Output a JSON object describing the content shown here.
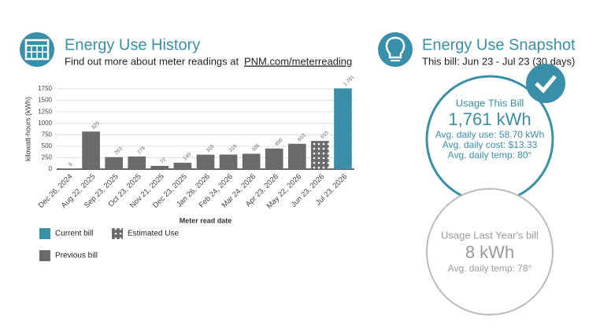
{
  "history": {
    "title": "Energy Use History",
    "subtitle": "Find out more about meter readings at",
    "link": "PNM.com/meterreading"
  },
  "chart_data": {
    "type": "bar",
    "categories": [
      "Dec 26, 2024",
      "Aug 22, 2025",
      "Sep 23, 2025",
      "Oct 23, 2025",
      "Nov 21, 2025",
      "Dec 23, 2025",
      "Jan 26, 2026",
      "Feb 24, 2026",
      "Mar 24, 2026",
      "Apr 23, 2026",
      "May 22, 2026",
      "Jun 23, 2026",
      "Jul 23, 2026"
    ],
    "series": [
      {
        "name": "Current bill",
        "color": "#3a8fa8",
        "values": [
          null,
          null,
          null,
          null,
          null,
          null,
          null,
          null,
          null,
          null,
          null,
          null,
          1761
        ],
        "value_labels": [
          null,
          null,
          null,
          null,
          null,
          null,
          null,
          null,
          null,
          null,
          null,
          null,
          "1,761"
        ]
      },
      {
        "name": "Estimated Use",
        "color": "#6a6a6a",
        "pattern": "dots",
        "values": [
          null,
          null,
          null,
          null,
          null,
          null,
          null,
          null,
          null,
          null,
          null,
          615,
          null
        ]
      },
      {
        "name": "Previous bill",
        "color": "#6a6a6a",
        "values": [
          8,
          820,
          263,
          276,
          72,
          140,
          316,
          318,
          335,
          450,
          553,
          null,
          null
        ]
      }
    ],
    "ylim": [
      0,
      1750
    ],
    "yticks": [
      0,
      250,
      500,
      750,
      1000,
      1250,
      1500,
      1750
    ],
    "grid": true,
    "y_label": "kilowatt-hours (kWh)",
    "x_label": "Meter read date"
  },
  "snapshot": {
    "title": "Energy Use Snapshot",
    "subtitle": "This bill: Jun 23 - Jul 23 (30 days)",
    "current": {
      "heading": "Usage This Bill",
      "usage": "1,761 kWh",
      "lines": [
        "Avg. daily use: 58.70 kWh",
        "Avg. daily cost: $13.33",
        "Avg. daily temp: 80°"
      ]
    },
    "last_year": {
      "heading": "Usage Last Year's bill",
      "usage": "8 kWh",
      "lines": [
        "Avg. daily temp: 78°"
      ]
    }
  }
}
